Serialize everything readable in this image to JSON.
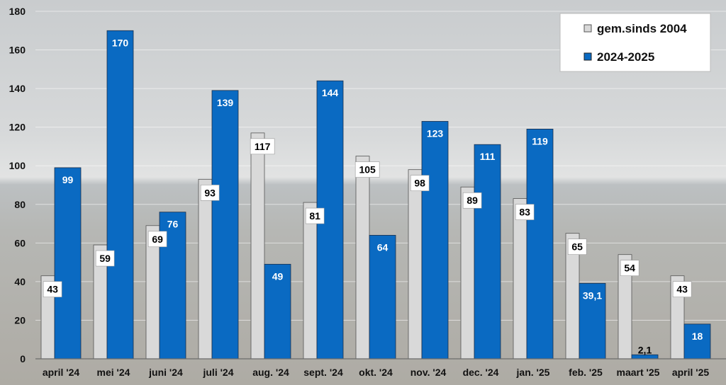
{
  "chart_data": {
    "type": "bar",
    "title": "",
    "xlabel": "",
    "ylabel": "",
    "ylim": [
      0,
      180
    ],
    "yticks": [
      "0",
      "20",
      "40",
      "60",
      "80",
      "100",
      "120",
      "140",
      "160",
      "180"
    ],
    "ytick_values": [
      0,
      20,
      40,
      60,
      80,
      100,
      120,
      140,
      160,
      180
    ],
    "grid": true,
    "legend_position": "top-right",
    "categories": [
      "april '24",
      "mei '24",
      "juni '24",
      "juli '24",
      "aug. '24",
      "sept. '24",
      "okt. '24",
      "nov. '24",
      "dec. '24",
      "jan. '25",
      "feb. '25",
      "maart '25",
      "april '25"
    ],
    "series": [
      {
        "name": "gem.sinds 2004",
        "color": "#d9d9d9",
        "values": [
          43,
          59,
          69,
          93,
          117,
          81,
          105,
          98,
          89,
          83,
          65,
          54,
          43
        ],
        "labels": [
          "43",
          "59",
          "69",
          "93",
          "117",
          "81",
          "105",
          "98",
          "89",
          "83",
          "65",
          "54",
          "43"
        ]
      },
      {
        "name": "2024-2025",
        "color": "#0a6ac2",
        "values": [
          99,
          170,
          76,
          139,
          49,
          144,
          64,
          123,
          111,
          119,
          39.1,
          2.1,
          18
        ],
        "labels": [
          "99",
          "170",
          "76",
          "139",
          "49",
          "144",
          "64",
          "123",
          "111",
          "119",
          "39,1",
          "2,1",
          "18"
        ]
      }
    ]
  }
}
